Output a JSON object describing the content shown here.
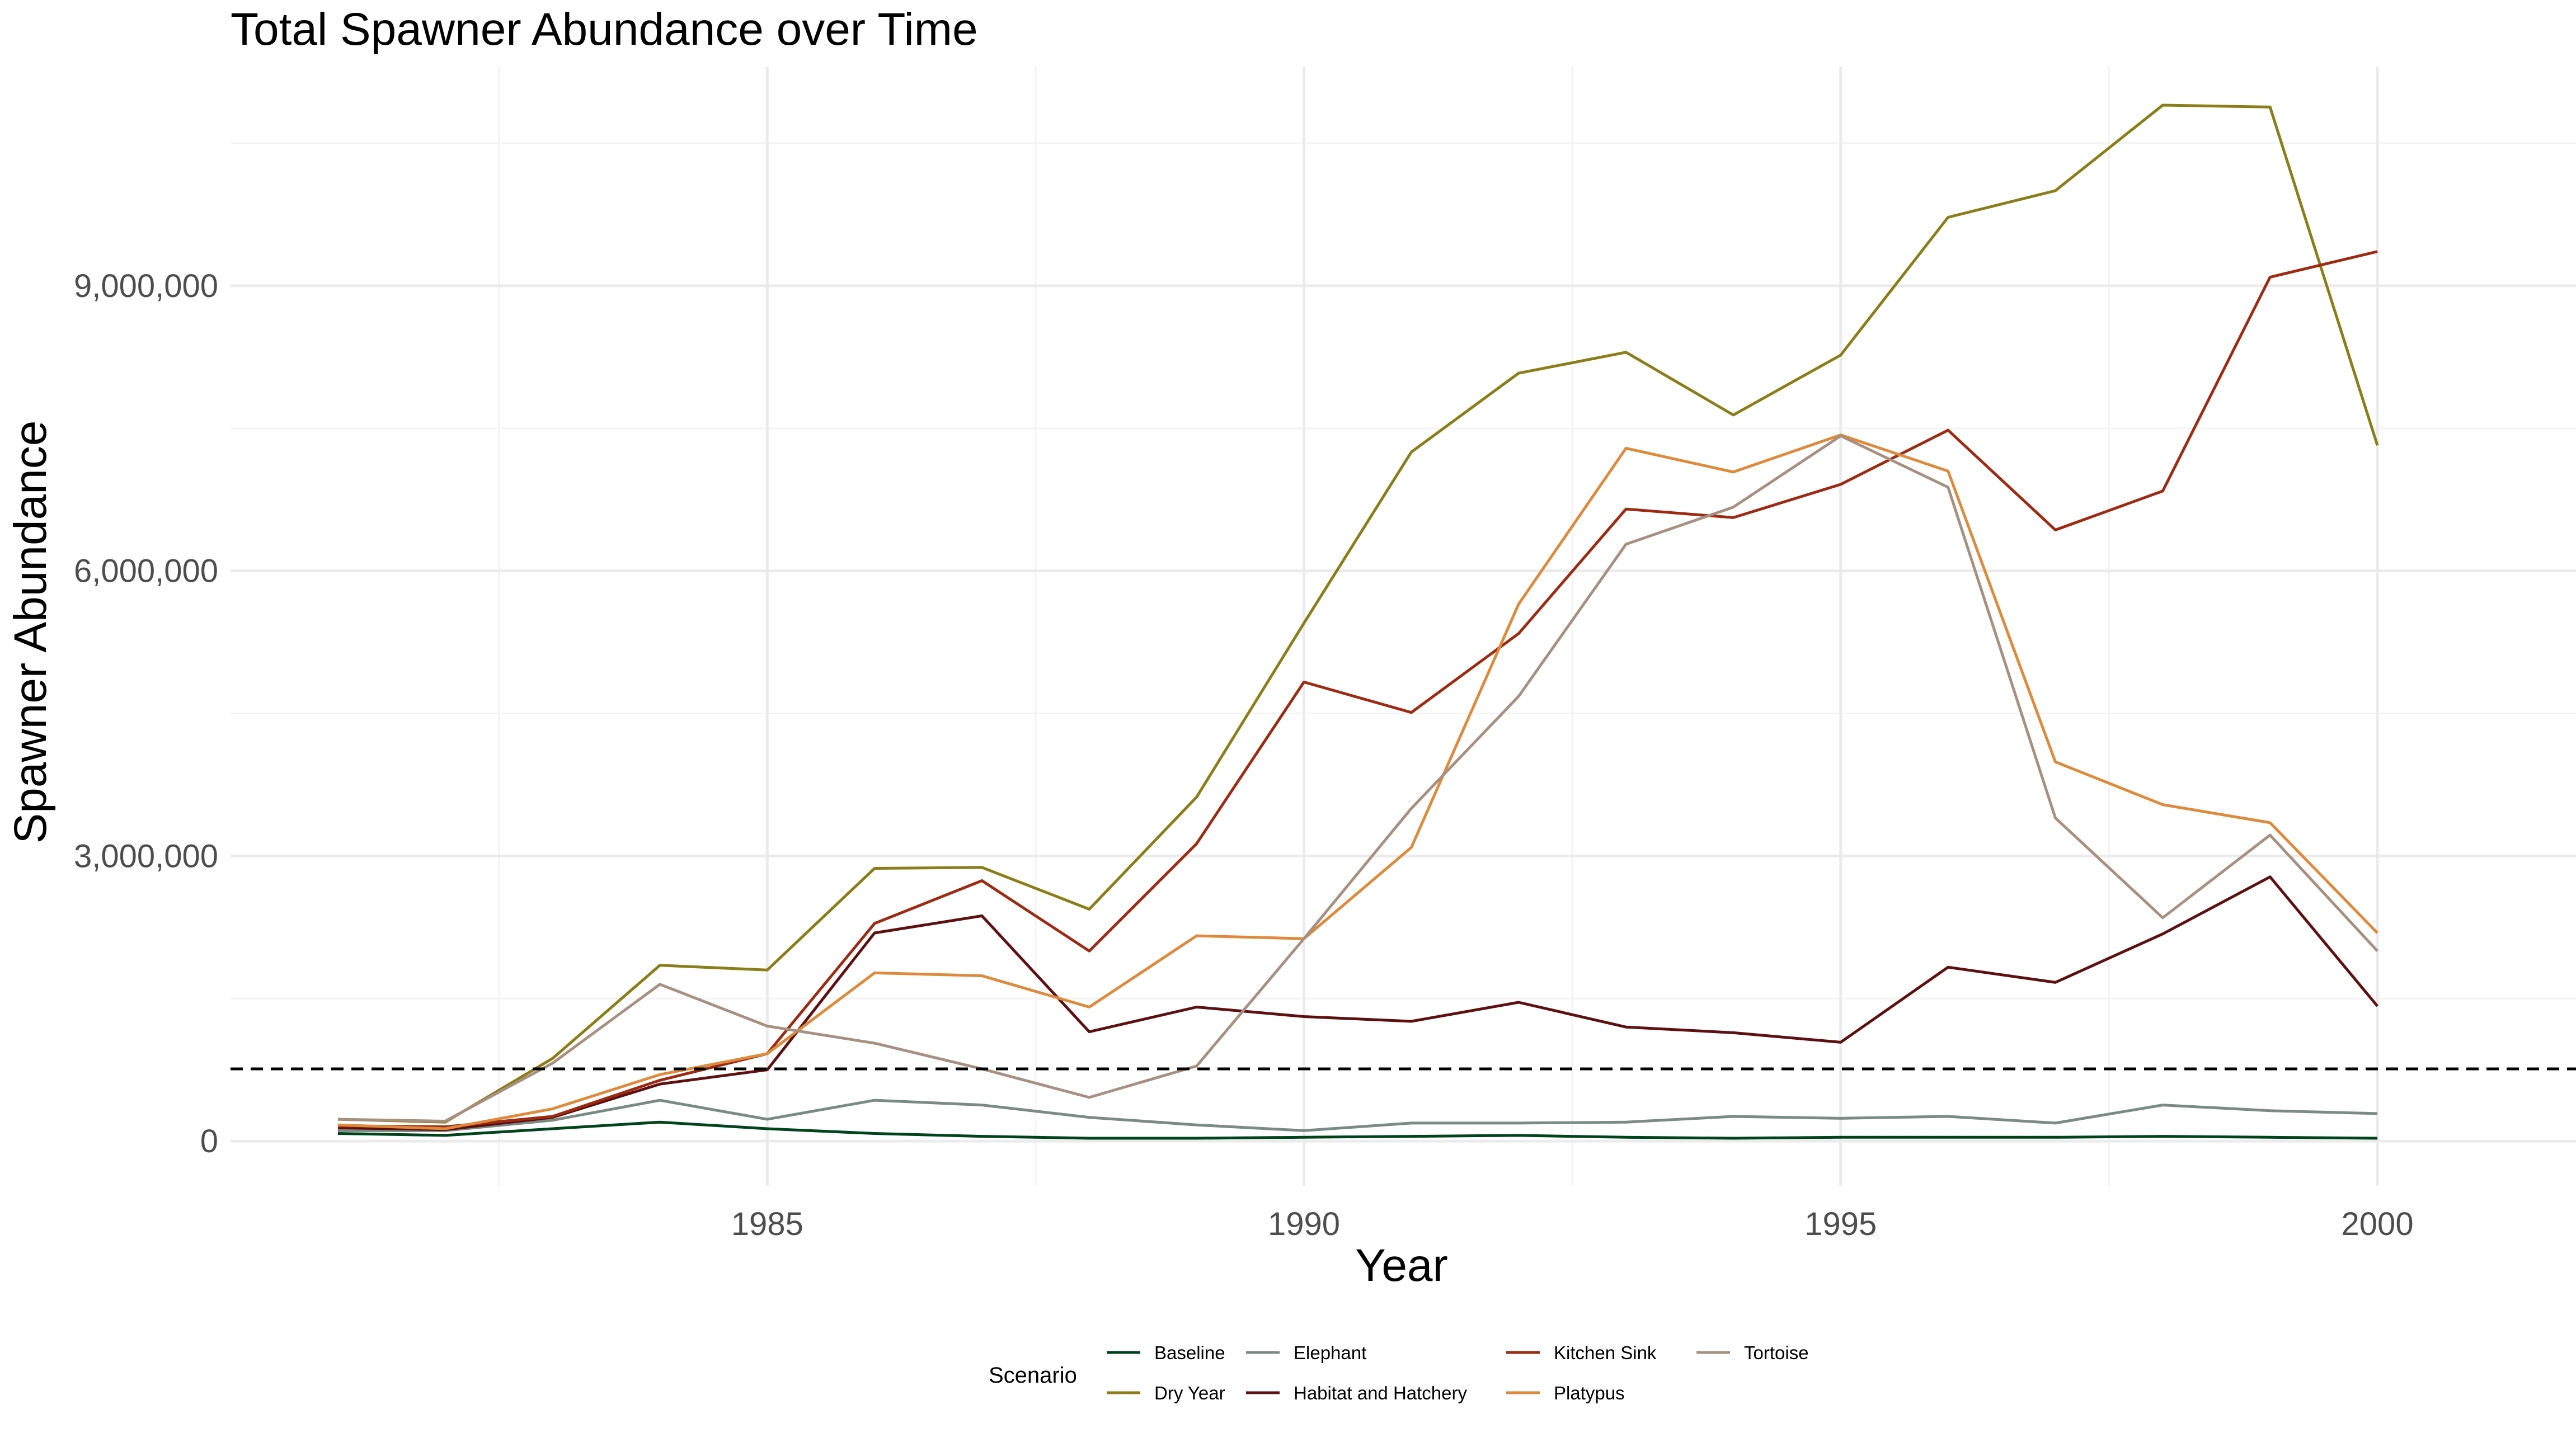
{
  "chart_data": {
    "type": "line",
    "title": "Total Spawner Abundance over Time",
    "xlabel": "Year",
    "ylabel": "Spawner Abundance",
    "xlim": [
      1980.0,
      2001.85
    ],
    "ylim": [
      -470000,
      11300000
    ],
    "x_ticks": [
      1985,
      1990,
      1995,
      2000
    ],
    "x_tick_labels": [
      "1985",
      "1990",
      "1995",
      "2000"
    ],
    "y_ticks": [
      0,
      3000000,
      6000000,
      9000000
    ],
    "y_tick_labels": [
      "0",
      "3,000,000",
      "6,000,000",
      "9,000,000"
    ],
    "reference_line": {
      "y": 760000,
      "style": "dashed"
    },
    "grid": true,
    "legend": {
      "title": "Scenario",
      "position": "bottom"
    },
    "x": [
      1981,
      1982,
      1983,
      1984,
      1985,
      1986,
      1987,
      1988,
      1989,
      1990,
      1991,
      1992,
      1993,
      1994,
      1995,
      1996,
      1997,
      1998,
      1999,
      2000
    ],
    "series": [
      {
        "name": "Baseline",
        "color": "#00441b",
        "values": [
          80000,
          60000,
          130000,
          200000,
          130000,
          80000,
          50000,
          30000,
          30000,
          40000,
          50000,
          60000,
          40000,
          30000,
          40000,
          40000,
          40000,
          50000,
          40000,
          30000
        ]
      },
      {
        "name": "Dry Year",
        "color": "#8b7d17",
        "values": [
          230000,
          200000,
          870000,
          1850000,
          1800000,
          2870000,
          2880000,
          2440000,
          3620000,
          5450000,
          7250000,
          8080000,
          8300000,
          7640000,
          8270000,
          9720000,
          10000000,
          10900000,
          10880000,
          7320000
        ]
      },
      {
        "name": "Elephant",
        "color": "#7a8b85",
        "values": [
          110000,
          110000,
          220000,
          430000,
          230000,
          430000,
          380000,
          250000,
          170000,
          110000,
          190000,
          190000,
          200000,
          260000,
          240000,
          260000,
          190000,
          380000,
          320000,
          290000
        ]
      },
      {
        "name": "Habitat and Hatchery",
        "color": "#5e1010",
        "values": [
          140000,
          120000,
          250000,
          600000,
          750000,
          2190000,
          2370000,
          1150000,
          1410000,
          1310000,
          1260000,
          1460000,
          1200000,
          1140000,
          1040000,
          1830000,
          1670000,
          2180000,
          2780000,
          1420000
        ]
      },
      {
        "name": "Kitchen Sink",
        "color": "#9e2a12",
        "values": [
          160000,
          150000,
          260000,
          640000,
          920000,
          2290000,
          2740000,
          2000000,
          3130000,
          4830000,
          4510000,
          5340000,
          6650000,
          6560000,
          6910000,
          7480000,
          6430000,
          6840000,
          9090000,
          9360000
        ]
      },
      {
        "name": "Platypus",
        "color": "#de8a3a",
        "values": [
          170000,
          130000,
          340000,
          700000,
          920000,
          1770000,
          1740000,
          1410000,
          2160000,
          2130000,
          3090000,
          5650000,
          7290000,
          7040000,
          7430000,
          7050000,
          3990000,
          3540000,
          3350000,
          2190000
        ]
      },
      {
        "name": "Tortoise",
        "color": "#a89080",
        "values": [
          230000,
          210000,
          820000,
          1650000,
          1210000,
          1030000,
          760000,
          460000,
          790000,
          2130000,
          3500000,
          4680000,
          6280000,
          6670000,
          7420000,
          6880000,
          3400000,
          2350000,
          3220000,
          2000000
        ]
      }
    ]
  }
}
